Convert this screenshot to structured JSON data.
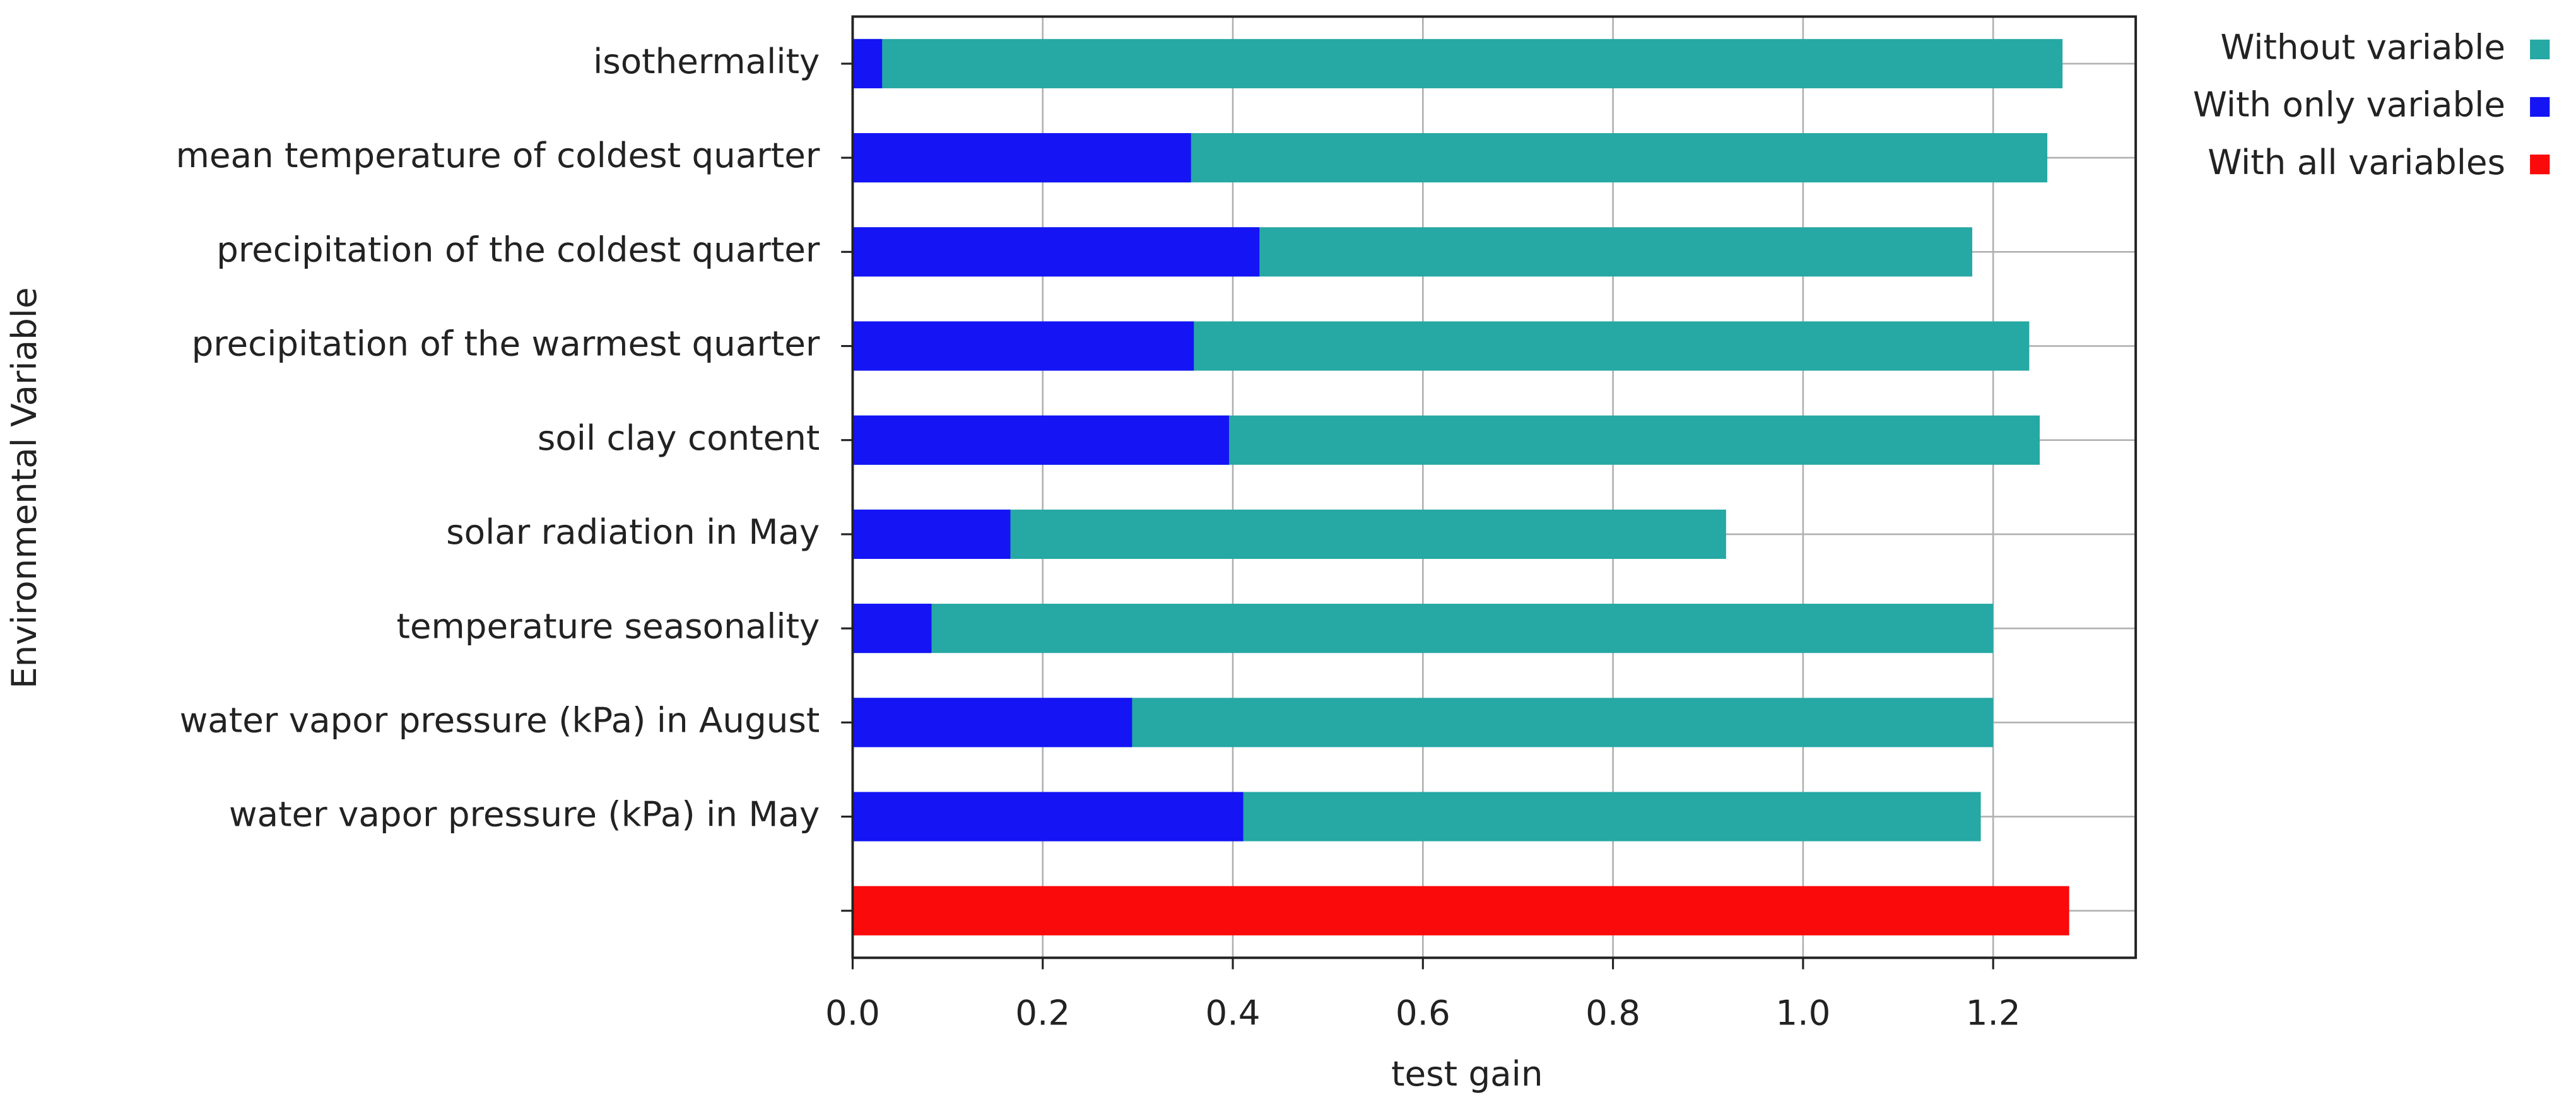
{
  "chart_data": {
    "type": "bar",
    "orientation": "horizontal",
    "xlabel": "test gain",
    "ylabel": "Environmental Variable",
    "categories": [
      "isothermality",
      "mean temperature of coldest quarter",
      "precipitation of the coldest quarter",
      "precipitation of the warmest quarter",
      "soil clay content",
      "solar radiation in May",
      "temperature seasonality",
      "water vapor pressure (kPa) in August",
      "water vapor pressure (kPa) in May",
      null
    ],
    "series": [
      {
        "name": "Without variable",
        "color": "#26a8a4",
        "values": [
          1.273,
          1.257,
          1.178,
          1.238,
          1.249,
          0.919,
          1.2,
          1.2,
          1.187,
          null
        ]
      },
      {
        "name": "With only variable",
        "color": "#1414f5",
        "values": [
          0.031,
          0.356,
          0.428,
          0.359,
          0.396,
          0.166,
          0.083,
          0.294,
          0.411,
          null
        ]
      },
      {
        "name": "With all variables",
        "color": "#fa0a0a",
        "values": [
          null,
          null,
          null,
          null,
          null,
          null,
          null,
          null,
          null,
          1.28
        ]
      }
    ],
    "xlim": [
      0,
      1.35
    ],
    "xticks": [
      {
        "value": 0,
        "label": "0.0"
      },
      0.2,
      0.4,
      0.6,
      0.8,
      {
        "value": 1,
        "label": "1.0"
      },
      1.2
    ],
    "grid": true,
    "legend": "upper right"
  }
}
